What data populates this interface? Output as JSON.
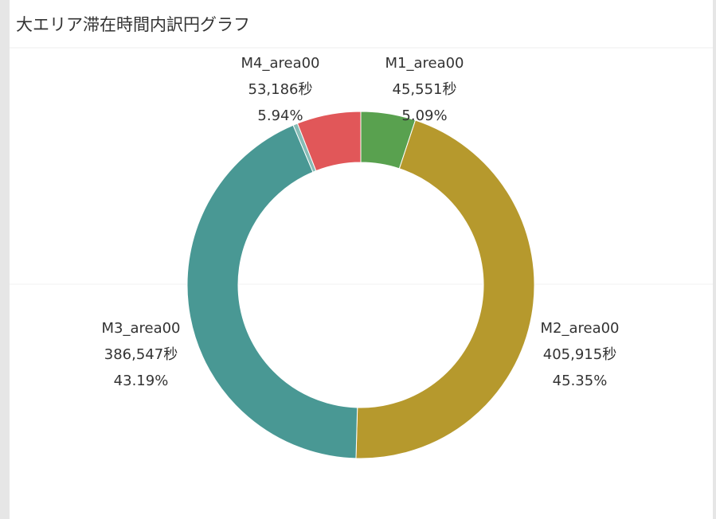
{
  "chart_data": {
    "type": "donut",
    "title": "大エリア滞在時間内訳円グラフ",
    "categories": [
      "M1_area00",
      "M2_area00",
      "M3_area00",
      null,
      "M4_area00"
    ],
    "values": [
      45551,
      405915,
      386547,
      3850,
      53186
    ],
    "value_labels": [
      "45,551秒",
      "405,915秒",
      "386,547秒",
      null,
      "53,186秒"
    ],
    "percents": [
      5.09,
      45.35,
      43.19,
      0.43,
      5.94
    ],
    "percent_labels": [
      "5.09%",
      "45.35%",
      "43.19%",
      null,
      "5.94%"
    ],
    "colors": [
      "#59a14f",
      "#b6992d",
      "#499894",
      "#86bcb6",
      "#e15759"
    ]
  }
}
